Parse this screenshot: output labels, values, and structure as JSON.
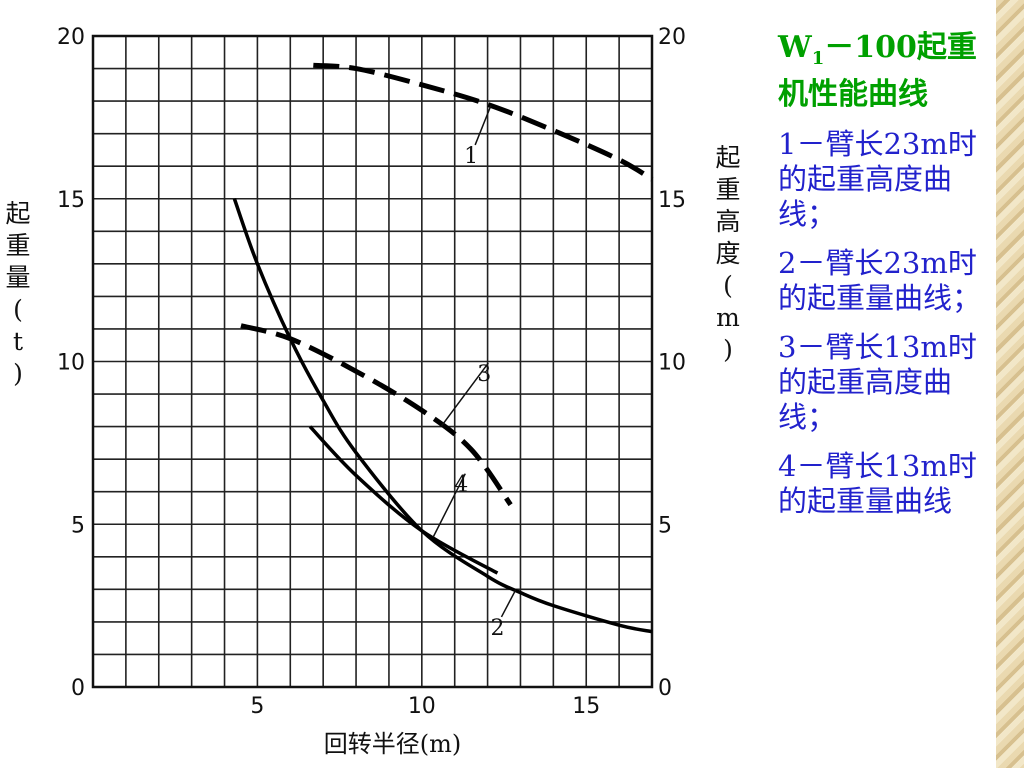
{
  "panel": {
    "title_w": "W",
    "title_sub": "1",
    "title_rest": "－100起重机性能曲线",
    "legend": [
      "1－臂长23m时的起重高度曲线；",
      "2－臂长23m时的起重量曲线；",
      "3－臂长13m时的起重高度曲线；",
      "4－臂长13m时的起重量曲线"
    ]
  },
  "chart_data": {
    "type": "line",
    "xlabel": "回转半径(m)",
    "ylabel_left": "起重量(t)",
    "ylabel_right": "起重高度(m)",
    "xlim": [
      0,
      17
    ],
    "ylim": [
      0,
      20
    ],
    "x_ticks": [
      5,
      10,
      15
    ],
    "y_ticks": [
      0,
      5,
      10,
      15,
      20
    ],
    "grid": true,
    "series": [
      {
        "name": "1",
        "style": "dashed",
        "x": [
          6.7,
          8,
          10,
          12,
          14,
          16,
          17
        ],
        "y": [
          19.1,
          19.0,
          18.5,
          17.9,
          17.1,
          16.2,
          15.6
        ]
      },
      {
        "name": "2",
        "style": "solid",
        "x": [
          4.3,
          5,
          6,
          7,
          8,
          10,
          12,
          13,
          14,
          16,
          17
        ],
        "y": [
          15.0,
          13.0,
          10.7,
          8.8,
          7.2,
          4.8,
          3.4,
          2.9,
          2.5,
          1.9,
          1.7
        ]
      },
      {
        "name": "3",
        "style": "dashed",
        "x": [
          4.5,
          6,
          8,
          10,
          11.5,
          12.7
        ],
        "y": [
          11.1,
          10.7,
          9.7,
          8.5,
          7.3,
          5.6
        ]
      },
      {
        "name": "4",
        "style": "solid",
        "x": [
          6.6,
          8,
          10,
          12.3
        ],
        "y": [
          8.0,
          6.5,
          4.8,
          3.5
        ]
      }
    ],
    "curve_labels": [
      {
        "text": "1",
        "x": 11.5,
        "y": 16.1
      },
      {
        "text": "2",
        "x": 12.3,
        "y": 1.6
      },
      {
        "text": "3",
        "x": 11.9,
        "y": 9.4
      },
      {
        "text": "4",
        "x": 11.2,
        "y": 6.0
      }
    ]
  }
}
